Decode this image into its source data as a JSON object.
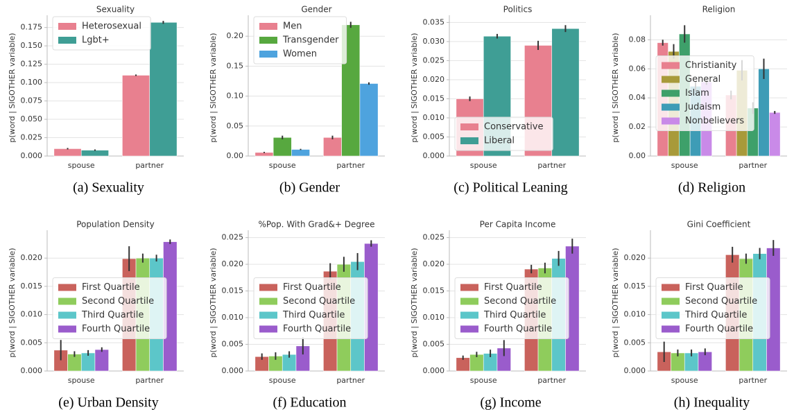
{
  "chart_data": [
    {
      "type": "bar",
      "title": "Sexuality",
      "caption": "(a) Sexuality",
      "ylabel": "p(word | SIGOTHER variable)",
      "categories": [
        "spouse",
        "partner"
      ],
      "legend": "upper left",
      "grid": true,
      "ylim": [
        0,
        0.186
      ],
      "yticks": [
        {
          "value": 0,
          "label": "0.000"
        },
        {
          "value": 0.025,
          "label": "0.025"
        },
        {
          "value": 0.05,
          "label": "0.050"
        },
        {
          "value": 0.075,
          "label": "0.075"
        },
        {
          "value": 0.1,
          "label": "0.100"
        },
        {
          "value": 0.125,
          "label": "0.125"
        },
        {
          "value": 0.15,
          "label": "0.150"
        },
        {
          "value": 0.175,
          "label": "0.175"
        }
      ],
      "series": [
        {
          "name": "Heterosexual",
          "color": "#e8808f",
          "values": [
            0.01,
            0.11
          ],
          "errors": [
            0.001,
            0.001
          ]
        },
        {
          "name": "Lgbt+",
          "color": "#3f9e95",
          "values": [
            0.008,
            0.182
          ],
          "errors": [
            0.001,
            0.002
          ]
        }
      ]
    },
    {
      "type": "bar",
      "title": "Gender",
      "caption": "(b) Gender",
      "ylabel": "p(word | SIGOTHER variable)",
      "categories": [
        "spouse",
        "partner"
      ],
      "legend": "upper left",
      "grid": true,
      "ylim": [
        0,
        0.228
      ],
      "yticks": [
        {
          "value": 0,
          "label": "0.00"
        },
        {
          "value": 0.05,
          "label": "0.05"
        },
        {
          "value": 0.1,
          "label": "0.10"
        },
        {
          "value": 0.15,
          "label": "0.15"
        },
        {
          "value": 0.2,
          "label": "0.20"
        }
      ],
      "series": [
        {
          "name": "Men",
          "color": "#e8808f",
          "values": [
            0.006,
            0.031
          ],
          "errors": [
            0.001,
            0.003
          ]
        },
        {
          "name": "Transgender",
          "color": "#57a83f",
          "values": [
            0.031,
            0.219
          ],
          "errors": [
            0.003,
            0.005
          ]
        },
        {
          "name": "Women",
          "color": "#4ea3de",
          "values": [
            0.011,
            0.121
          ],
          "errors": [
            0.001,
            0.002
          ]
        }
      ]
    },
    {
      "type": "bar",
      "title": "Politics",
      "caption": "(c) Political Leaning",
      "ylabel": "p(word | SIGOTHER variable)",
      "categories": [
        "spouse",
        "partner"
      ],
      "legend": "lower left",
      "grid": true,
      "ylim": [
        0,
        0.0358
      ],
      "yticks": [
        {
          "value": 0,
          "label": "0.000"
        },
        {
          "value": 0.005,
          "label": "0.005"
        },
        {
          "value": 0.01,
          "label": "0.010"
        },
        {
          "value": 0.015,
          "label": "0.015"
        },
        {
          "value": 0.02,
          "label": "0.020"
        },
        {
          "value": 0.025,
          "label": "0.025"
        },
        {
          "value": 0.03,
          "label": "0.030"
        },
        {
          "value": 0.035,
          "label": "0.035"
        }
      ],
      "series": [
        {
          "name": "Conservative",
          "color": "#e8808f",
          "values": [
            0.015,
            0.029
          ],
          "errors": [
            0.0006,
            0.0012
          ]
        },
        {
          "name": "Liberal",
          "color": "#3f9e95",
          "values": [
            0.0314,
            0.0334
          ],
          "errors": [
            0.0006,
            0.0009
          ]
        }
      ]
    },
    {
      "type": "bar",
      "title": "Religion",
      "caption": "(d) Religion",
      "ylabel": "p(word | SIGOTHER variable)",
      "categories": [
        "spouse",
        "partner"
      ],
      "legend": "center left",
      "grid": true,
      "ylim": [
        0,
        0.094
      ],
      "yticks": [
        {
          "value": 0,
          "label": "0.00"
        },
        {
          "value": 0.02,
          "label": "0.02"
        },
        {
          "value": 0.04,
          "label": "0.04"
        },
        {
          "value": 0.06,
          "label": "0.06"
        },
        {
          "value": 0.08,
          "label": "0.08"
        }
      ],
      "series": [
        {
          "name": "Christianity",
          "color": "#e8808f",
          "values": [
            0.078,
            0.042
          ],
          "errors": [
            0.002,
            0.003
          ]
        },
        {
          "name": "General",
          "color": "#a89a3a",
          "values": [
            0.072,
            0.059
          ],
          "errors": [
            0.005,
            0.007
          ]
        },
        {
          "name": "Islam",
          "color": "#3ea06a",
          "values": [
            0.084,
            0.033
          ],
          "errors": [
            0.006,
            0.004
          ]
        },
        {
          "name": "Judaism",
          "color": "#3e9cb6",
          "values": [
            0.048,
            0.06
          ],
          "errors": [
            0.003,
            0.007
          ]
        },
        {
          "name": "Nonbelievers",
          "color": "#c98ae8",
          "values": [
            0.051,
            0.03
          ],
          "errors": [
            0.002,
            0.001
          ]
        }
      ]
    },
    {
      "type": "bar",
      "title": "Population Density",
      "caption": "(e) Urban Density",
      "ylabel": "p(word | SIGOTHER variable)",
      "categories": [
        "spouse",
        "partner"
      ],
      "legend": "center left",
      "grid": true,
      "ylim": [
        0,
        0.0242
      ],
      "yticks": [
        {
          "value": 0,
          "label": "0.000"
        },
        {
          "value": 0.005,
          "label": "0.005"
        },
        {
          "value": 0.01,
          "label": "0.010"
        },
        {
          "value": 0.015,
          "label": "0.015"
        },
        {
          "value": 0.02,
          "label": "0.020"
        }
      ],
      "series": [
        {
          "name": "First Quartile",
          "color": "#c9625c",
          "values": [
            0.0037,
            0.0199
          ],
          "errors": [
            0.0018,
            0.0022
          ]
        },
        {
          "name": "Second Quartile",
          "color": "#8fcc5c",
          "values": [
            0.003,
            0.02
          ],
          "errors": [
            0.0005,
            0.0008
          ]
        },
        {
          "name": "Third Quartile",
          "color": "#5cc6c9",
          "values": [
            0.0032,
            0.02
          ],
          "errors": [
            0.0005,
            0.0006
          ]
        },
        {
          "name": "Fourth Quartile",
          "color": "#9a5ccc",
          "values": [
            0.0038,
            0.0229
          ],
          "errors": [
            0.0004,
            0.0004
          ]
        }
      ]
    },
    {
      "type": "bar",
      "title": "%Pop. With Grad&+ Degree",
      "caption": "(f) Education",
      "ylabel": "p(word | SIGOTHER variable)",
      "categories": [
        "spouse",
        "partner"
      ],
      "legend": "center left",
      "grid": true,
      "ylim": [
        0,
        0.0256
      ],
      "yticks": [
        {
          "value": 0,
          "label": "0.000"
        },
        {
          "value": 0.005,
          "label": "0.005"
        },
        {
          "value": 0.01,
          "label": "0.010"
        },
        {
          "value": 0.015,
          "label": "0.015"
        },
        {
          "value": 0.02,
          "label": "0.020"
        },
        {
          "value": 0.025,
          "label": "0.025"
        }
      ],
      "series": [
        {
          "name": "First Quartile",
          "color": "#c9625c",
          "values": [
            0.0027,
            0.0187
          ],
          "errors": [
            0.0006,
            0.0015
          ]
        },
        {
          "name": "Second Quartile",
          "color": "#8fcc5c",
          "values": [
            0.0028,
            0.02
          ],
          "errors": [
            0.0007,
            0.0014
          ]
        },
        {
          "name": "Third Quartile",
          "color": "#5cc6c9",
          "values": [
            0.0031,
            0.0205
          ],
          "errors": [
            0.0006,
            0.0016
          ]
        },
        {
          "name": "Fourth Quartile",
          "color": "#9a5ccc",
          "values": [
            0.0047,
            0.0239
          ],
          "errors": [
            0.0016,
            0.0006
          ]
        }
      ]
    },
    {
      "type": "bar",
      "title": "Per Capita Income",
      "caption": "(g) Income",
      "ylabel": "p(word | SIGOTHER variable)",
      "categories": [
        "spouse",
        "partner"
      ],
      "legend": "center left",
      "grid": true,
      "ylim": [
        0,
        0.0256
      ],
      "yticks": [
        {
          "value": 0,
          "label": "0.000"
        },
        {
          "value": 0.005,
          "label": "0.005"
        },
        {
          "value": 0.01,
          "label": "0.010"
        },
        {
          "value": 0.015,
          "label": "0.015"
        },
        {
          "value": 0.02,
          "label": "0.020"
        },
        {
          "value": 0.025,
          "label": "0.025"
        }
      ],
      "series": [
        {
          "name": "First Quartile",
          "color": "#c9625c",
          "values": [
            0.0025,
            0.0191
          ],
          "errors": [
            0.0004,
            0.0008
          ]
        },
        {
          "name": "Second Quartile",
          "color": "#8fcc5c",
          "values": [
            0.0031,
            0.0193
          ],
          "errors": [
            0.0005,
            0.001
          ]
        },
        {
          "name": "Third Quartile",
          "color": "#5cc6c9",
          "values": [
            0.0033,
            0.0211
          ],
          "errors": [
            0.0007,
            0.0014
          ]
        },
        {
          "name": "Fourth Quartile",
          "color": "#9a5ccc",
          "values": [
            0.0043,
            0.0234
          ],
          "errors": [
            0.0015,
            0.0014
          ]
        }
      ]
    },
    {
      "type": "bar",
      "title": "Gini Coefficient",
      "caption": "(h) Inequality",
      "ylabel": "p(word | SIGOTHER variable)",
      "categories": [
        "spouse",
        "partner"
      ],
      "legend": "center left",
      "grid": true,
      "ylim": [
        0,
        0.0242
      ],
      "yticks": [
        {
          "value": 0,
          "label": "0.000"
        },
        {
          "value": 0.005,
          "label": "0.005"
        },
        {
          "value": 0.01,
          "label": "0.010"
        },
        {
          "value": 0.015,
          "label": "0.015"
        },
        {
          "value": 0.02,
          "label": "0.020"
        }
      ],
      "series": [
        {
          "name": "First Quartile",
          "color": "#c9625c",
          "values": [
            0.0034,
            0.0206
          ],
          "errors": [
            0.0018,
            0.0014
          ]
        },
        {
          "name": "Second Quartile",
          "color": "#8fcc5c",
          "values": [
            0.0032,
            0.0199
          ],
          "errors": [
            0.0006,
            0.0009
          ]
        },
        {
          "name": "Third Quartile",
          "color": "#5cc6c9",
          "values": [
            0.0032,
            0.0208
          ],
          "errors": [
            0.0006,
            0.001
          ]
        },
        {
          "name": "Fourth Quartile",
          "color": "#9a5ccc",
          "values": [
            0.0034,
            0.0218
          ],
          "errors": [
            0.0006,
            0.0014
          ]
        }
      ]
    }
  ]
}
